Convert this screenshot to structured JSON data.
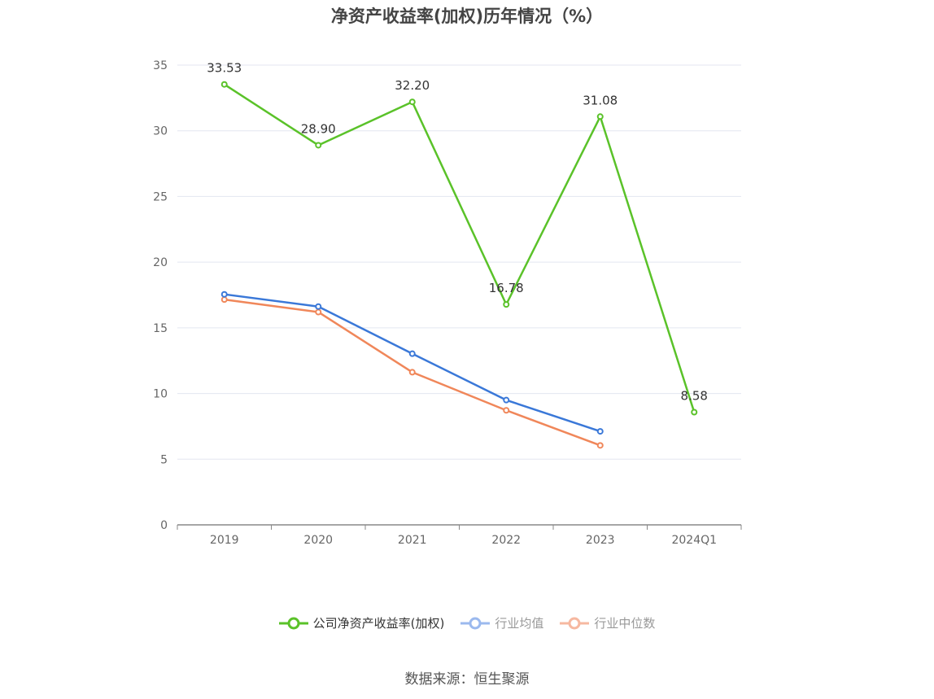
{
  "chart_data": {
    "type": "line",
    "title": "净资产收益率(加权)历年情况（%）",
    "categories": [
      "2019",
      "2020",
      "2021",
      "2022",
      "2023",
      "2024Q1"
    ],
    "ylim": [
      0,
      35
    ],
    "yticks": [
      0,
      5,
      10,
      15,
      20,
      25,
      30,
      35
    ],
    "grid": true,
    "legend_position": "bottom",
    "series": [
      {
        "name": "公司净资产收益率(加权)",
        "color": "#5ac229",
        "values": [
          33.53,
          28.9,
          32.2,
          16.78,
          31.08,
          8.58
        ],
        "labels": [
          "33.53",
          "28.90",
          "32.20",
          "16.78",
          "31.08",
          "8.58"
        ]
      },
      {
        "name": "行业均值",
        "color": "#3a78d8",
        "values": [
          17.55,
          16.62,
          13.03,
          9.5,
          7.12,
          null
        ]
      },
      {
        "name": "行业中位数",
        "color": "#f0875a",
        "values": [
          17.15,
          16.2,
          11.62,
          8.72,
          6.05,
          null
        ]
      }
    ]
  },
  "legend": {
    "items": [
      {
        "label": "公司净资产收益率(加权)",
        "color": "#5ac229",
        "text_color": "#333333"
      },
      {
        "label": "行业均值",
        "color": "#9bb9ee",
        "text_color": "#999999"
      },
      {
        "label": "行业中位数",
        "color": "#f6b8a0",
        "text_color": "#999999"
      }
    ]
  },
  "source": "数据来源：恒生聚源"
}
